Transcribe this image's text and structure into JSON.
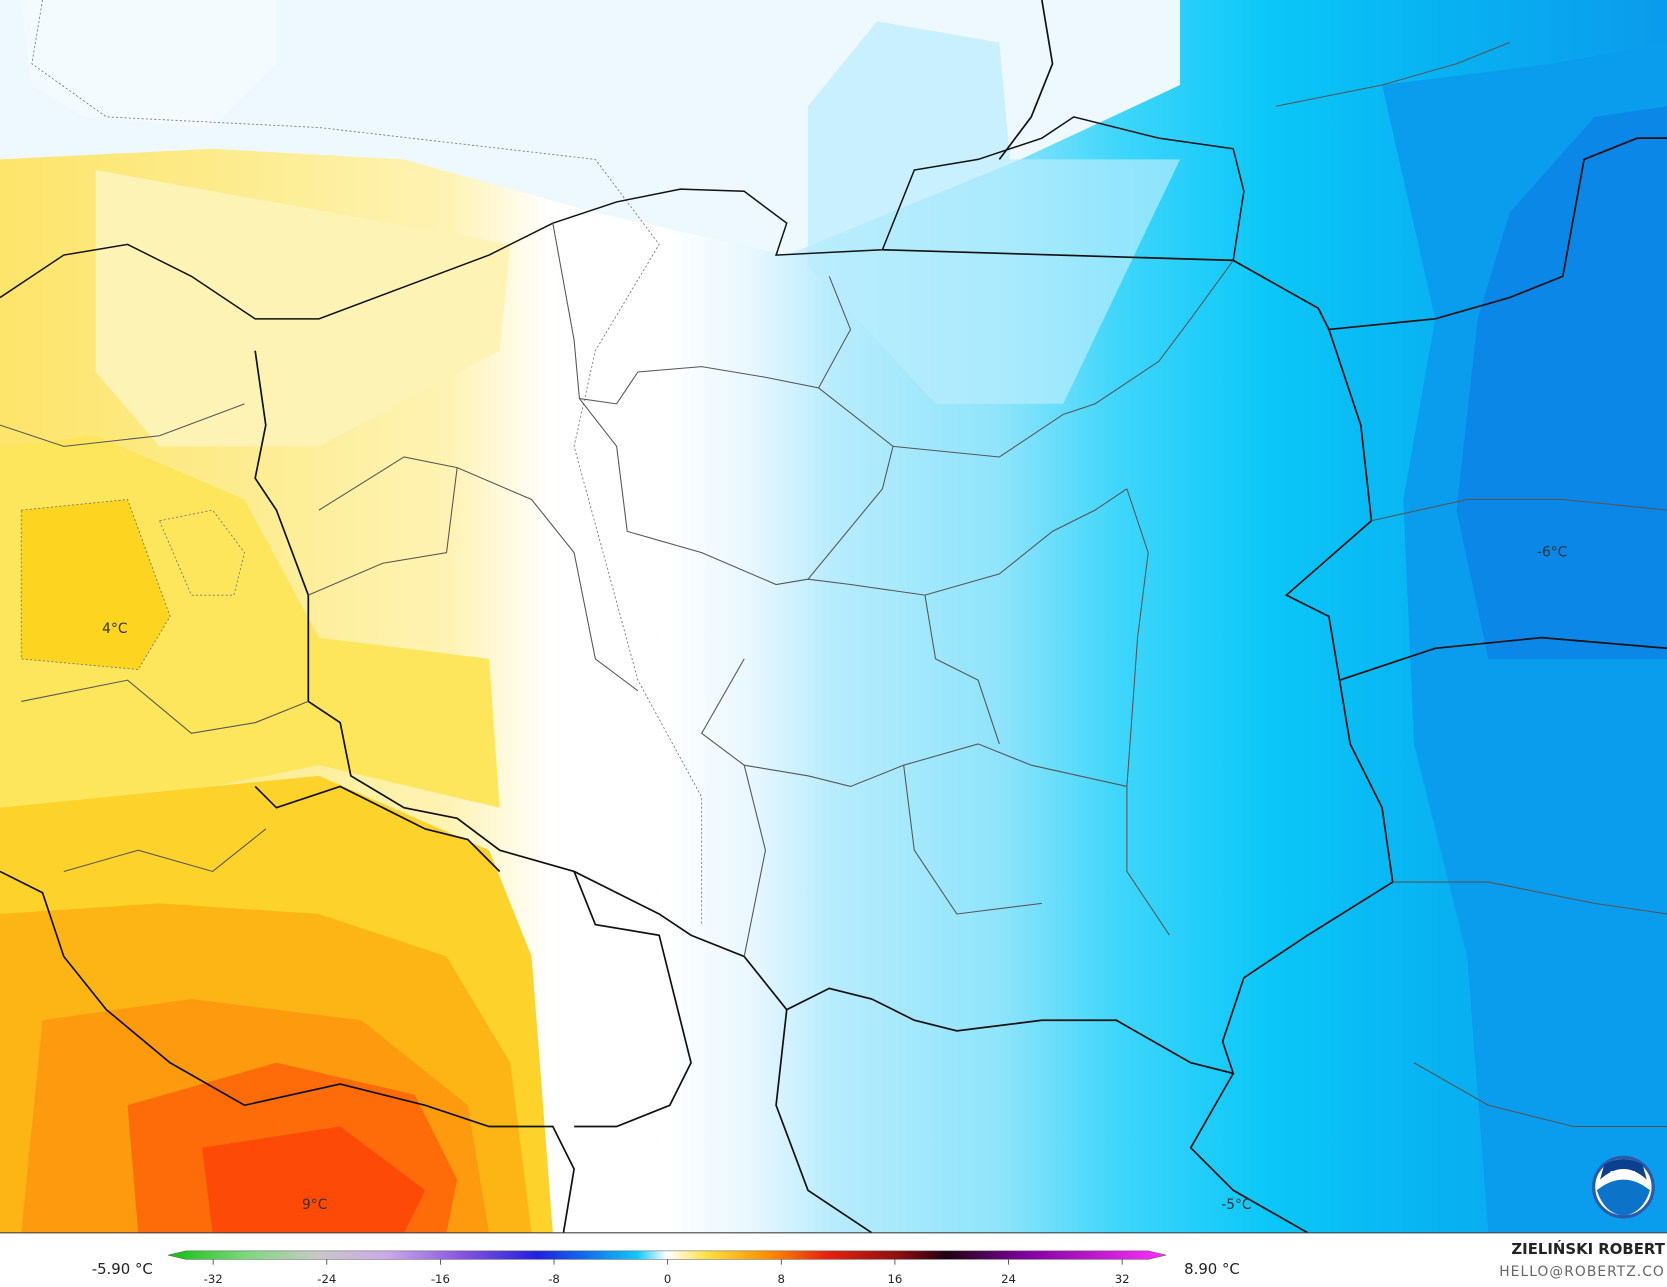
{
  "labels": [
    "4°C",
    "9°C",
    "-6°C",
    "-5°C"
  ],
  "legend": {
    "min_label": "-5.90 °C",
    "max_label": "8.90 °C",
    "ticks": [
      -32,
      -24,
      -16,
      -8,
      0,
      8,
      16,
      24,
      32
    ]
  },
  "credit": {
    "name": "ZIELIŃSKI ROBERT",
    "email": "HELLO@ROBERTZ.CO"
  },
  "logo": "NOAA"
}
